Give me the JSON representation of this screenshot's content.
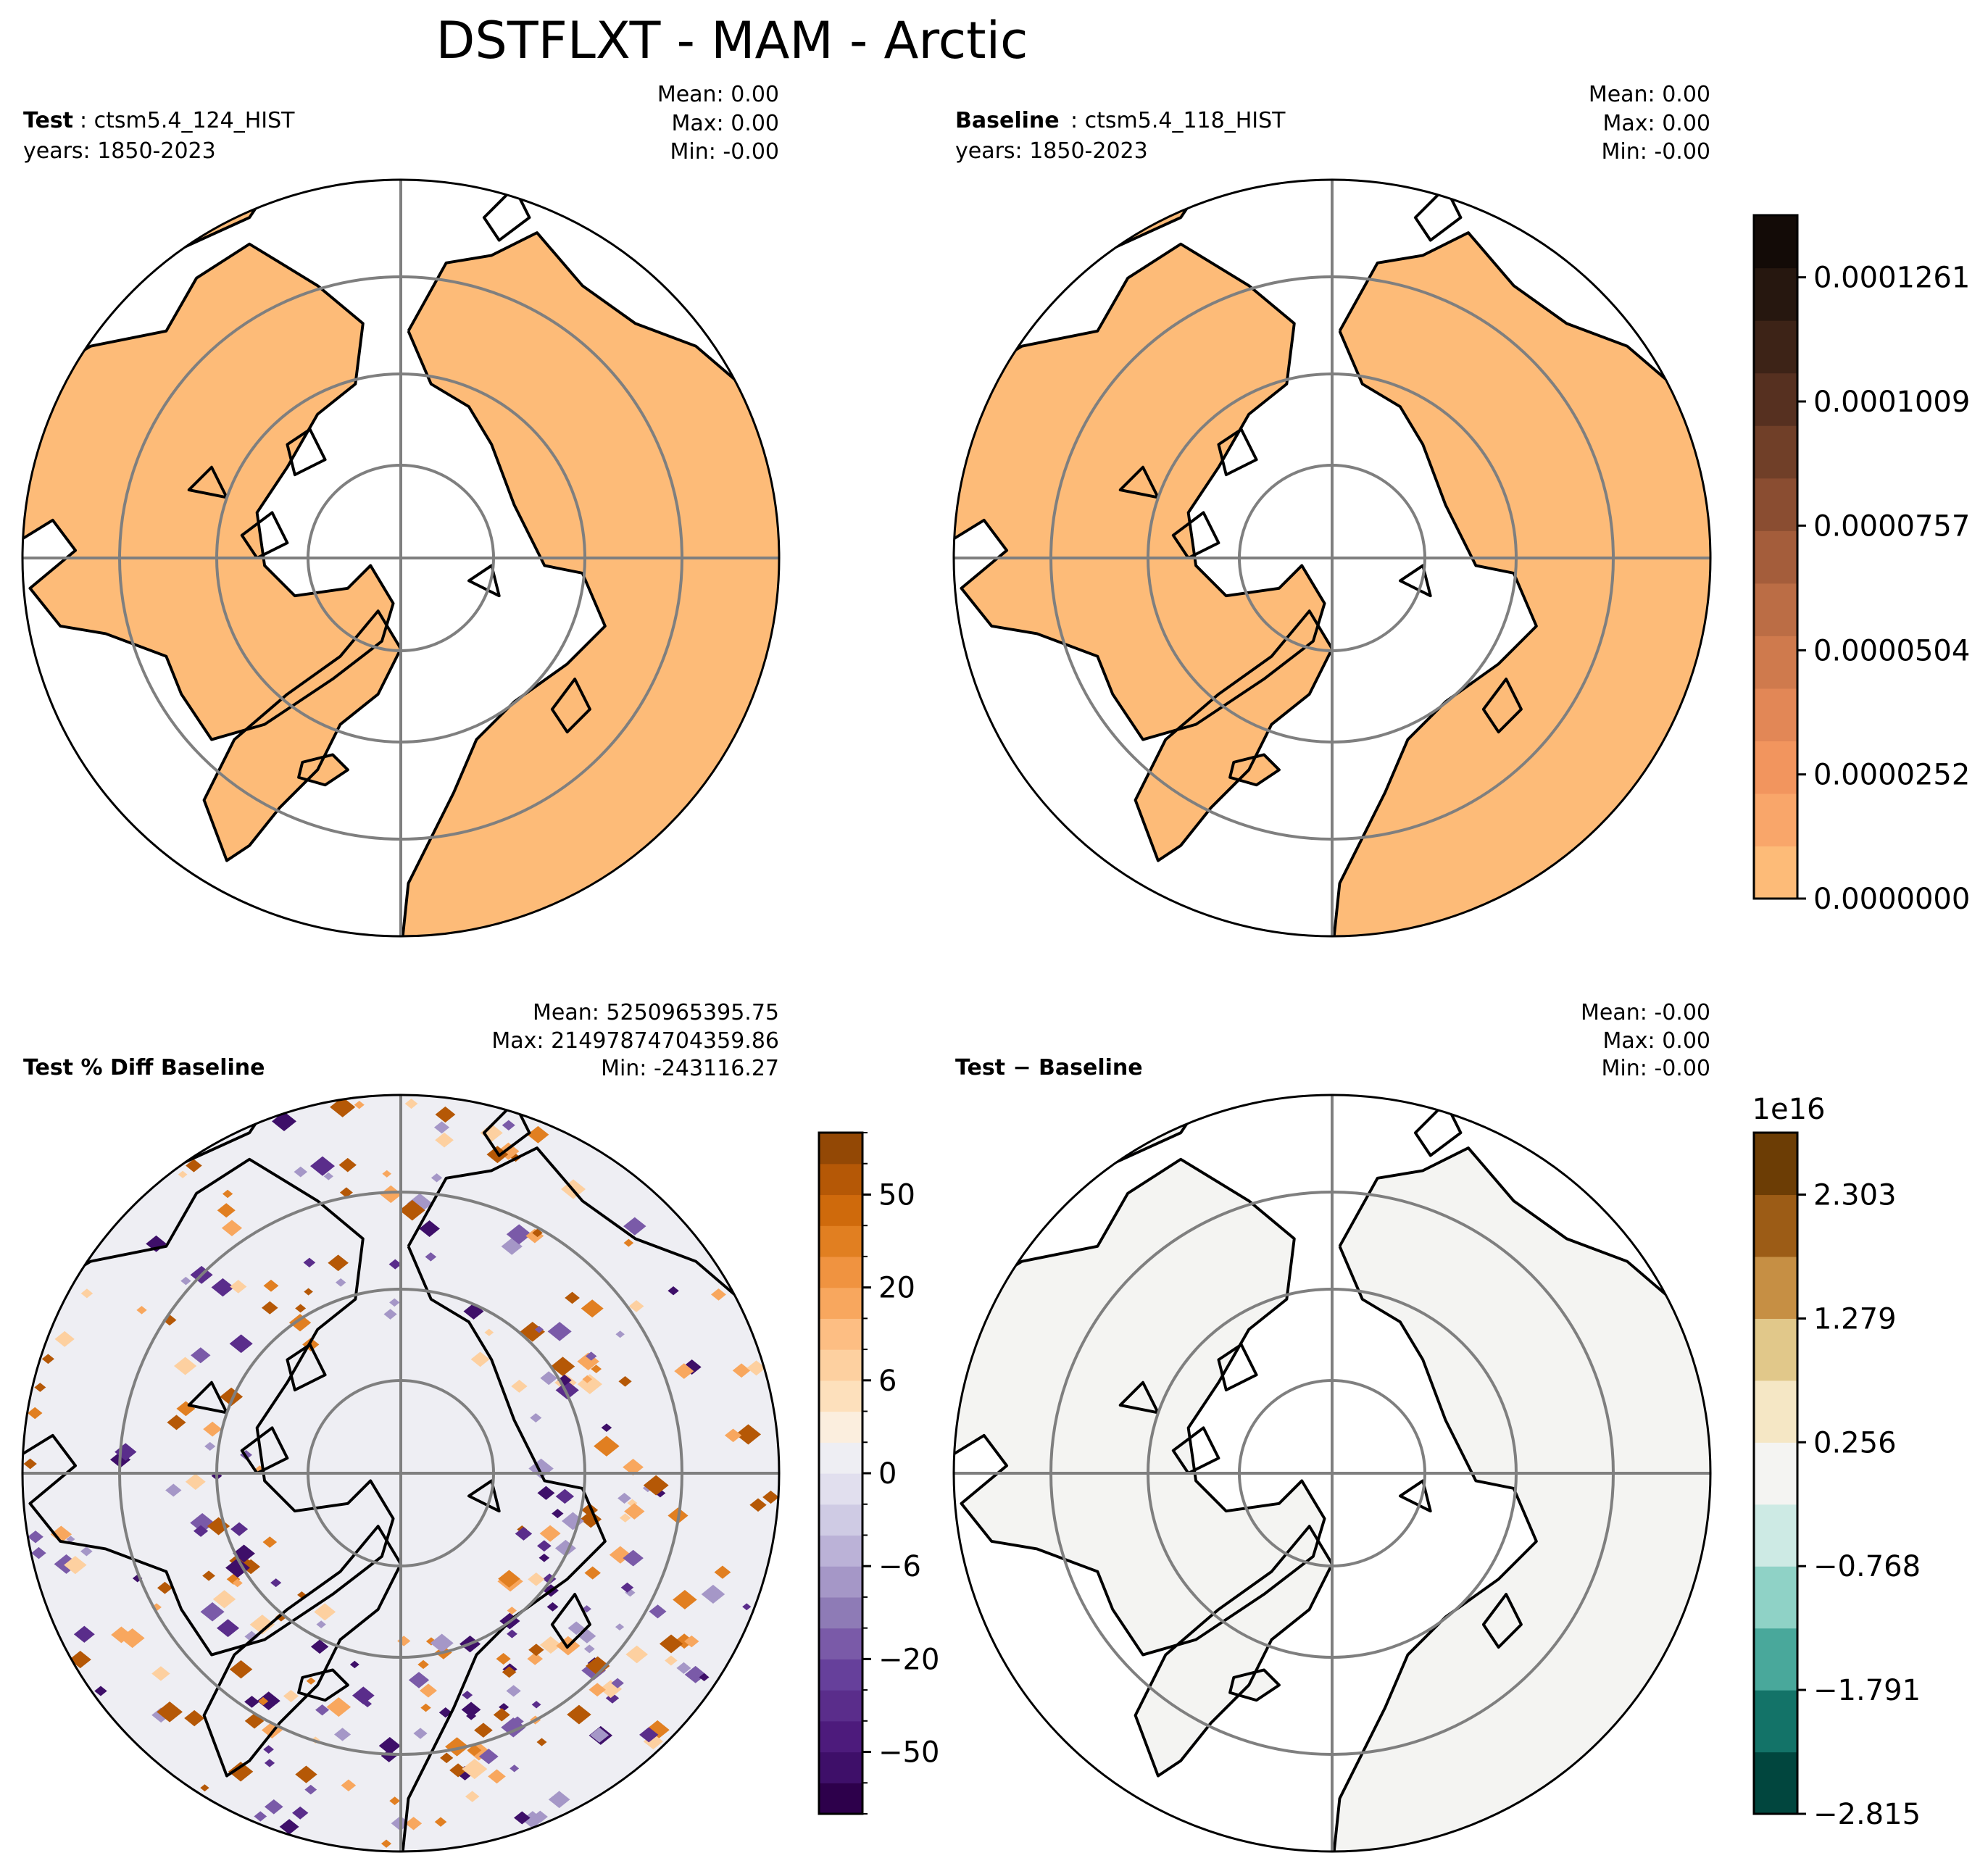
{
  "figure": {
    "title": "DSTFLXT - MAM - Arctic"
  },
  "colors": {
    "land_fill": "#fdbb78",
    "ocean_fill": "#ffffff",
    "diff_bg": "#eeeef3",
    "absdiff_fill": "#f4f4f2",
    "gridline": "#7f7f7f",
    "coast": "#000000"
  },
  "chart_data": [
    {
      "type": "heatmap",
      "panel": "test",
      "header_bold": "Test",
      "header_case": ": ctsm5.4_124_HIST",
      "years": "years: 1850-2023",
      "stats": {
        "mean": "Mean:  0.00",
        "max": "Max:  0.00",
        "min": "Min: -0.00"
      },
      "field": "uniform near-zero dust flux over land (MAM)"
    },
    {
      "type": "heatmap",
      "panel": "baseline",
      "header_bold": "Baseline",
      "header_case": ": ctsm5.4_118_HIST",
      "years": "years: 1850-2023",
      "stats": {
        "mean": "Mean:  0.00",
        "max": "Max:  0.00",
        "min": "Min: -0.00"
      },
      "colorbar": {
        "ticks": [
          "0.0000000",
          "0.0000252",
          "0.0000504",
          "0.0000757",
          "0.0001009",
          "0.0001261"
        ],
        "tick_values": [
          0,
          2.52e-05,
          5.04e-05,
          7.57e-05,
          0.0001009,
          0.0001261
        ],
        "range": [
          0,
          0.0001387
        ],
        "colors": [
          "#fdbb78",
          "#f9a66a",
          "#f2955e",
          "#e28756",
          "#cf7a4d",
          "#bb6d45",
          "#a45d3b",
          "#8a4d31",
          "#703f28",
          "#563020",
          "#3d2317",
          "#26170f",
          "#130b07"
        ]
      }
    },
    {
      "type": "heatmap",
      "panel": "pct_diff",
      "header_bold": "Test % Diff Baseline",
      "stats": {
        "mean": "Mean: 5250965395.75",
        "max": "Max: 21497874704359.86",
        "min": "Min: -243116.27"
      },
      "colorbar": {
        "ticks": [
          "−50",
          "−20",
          "−6",
          "0",
          "6",
          "20",
          "50"
        ],
        "tick_values": [
          -50,
          -20,
          -6,
          0,
          6,
          20,
          50
        ],
        "levels": [
          -100,
          -70,
          -50,
          -40,
          -30,
          -20,
          -15,
          -10,
          -6,
          -4,
          -2,
          0,
          2,
          4,
          6,
          10,
          15,
          20,
          30,
          40,
          50,
          70,
          100
        ],
        "colors": [
          "#2d004b",
          "#3e0f69",
          "#4d1b7c",
          "#5a2d8b",
          "#66409b",
          "#7a5aa8",
          "#8e7bb6",
          "#a597c7",
          "#bbb2d7",
          "#cfcbe4",
          "#e1dfee",
          "#eeeef3",
          "#fbeede",
          "#fde0bc",
          "#fdd0a0",
          "#fdbe83",
          "#f8a75e",
          "#f09340",
          "#e17f21",
          "#cf6a0c",
          "#b55806",
          "#934805"
        ],
        "blobs": [
          {
            "type": "neg",
            "ax": 0.08,
            "r": 0.22
          },
          {
            "type": "pos",
            "ax": 0.18,
            "r": 0.28
          },
          {
            "type": "pos",
            "ax": 0.32,
            "r": 0.25
          },
          {
            "type": "neg",
            "ax": 0.45,
            "r": 0.29
          },
          {
            "type": "pos",
            "ax": 0.55,
            "r": 0.21
          },
          {
            "type": "neg",
            "ax": 0.62,
            "r": 0.33
          },
          {
            "type": "neg",
            "ax": 0.74,
            "r": 0.3
          },
          {
            "type": "pos",
            "ax": 0.8,
            "r": 0.24
          },
          {
            "type": "neg",
            "ax": 0.88,
            "r": 0.27
          },
          {
            "type": "pos",
            "ax": 0.95,
            "r": 0.33
          },
          {
            "type": "neg",
            "ax": 1.05,
            "r": 0.3
          },
          {
            "type": "pos",
            "ax": 1.15,
            "r": 0.26
          },
          {
            "type": "neg",
            "ax": 1.25,
            "r": 0.31
          },
          {
            "type": "pos",
            "ax": 1.35,
            "r": 0.27
          },
          {
            "type": "neg",
            "ax": 1.45,
            "r": 0.34
          },
          {
            "type": "pos",
            "ax": 1.6,
            "r": 0.3
          },
          {
            "type": "neg",
            "ax": 1.75,
            "r": 0.32
          },
          {
            "type": "pos",
            "ax": 1.9,
            "r": 0.28
          },
          {
            "type": "neg",
            "ax": 2.05,
            "r": 0.33
          },
          {
            "type": "pos",
            "ax": 2.2,
            "r": 0.29
          },
          {
            "type": "neg",
            "ax": 2.35,
            "r": 0.31
          },
          {
            "type": "pos",
            "ax": 2.5,
            "r": 0.27
          },
          {
            "type": "pos",
            "ax": 2.7,
            "r": 0.3
          },
          {
            "type": "neg",
            "ax": 2.85,
            "r": 0.33
          },
          {
            "type": "pos",
            "ax": 3.0,
            "r": 0.25
          },
          {
            "type": "neg",
            "ax": 3.2,
            "r": 0.29
          },
          {
            "type": "pos",
            "ax": 3.4,
            "r": 0.32
          },
          {
            "type": "pos",
            "ax": 3.6,
            "r": 0.26
          },
          {
            "type": "neg",
            "ax": 3.8,
            "r": 0.31
          },
          {
            "type": "pos",
            "ax": 4.0,
            "r": 0.28
          },
          {
            "type": "pos",
            "ax": 4.2,
            "r": 0.33
          },
          {
            "type": "neg",
            "ax": 4.4,
            "r": 0.27
          },
          {
            "type": "pos",
            "ax": 4.55,
            "r": 0.3
          },
          {
            "type": "neg",
            "ax": 4.7,
            "r": 0.29
          },
          {
            "type": "pos",
            "ax": 4.85,
            "r": 0.26
          },
          {
            "type": "neg",
            "ax": 5.0,
            "r": 0.32
          },
          {
            "type": "pos",
            "ax": 5.15,
            "r": 0.3
          },
          {
            "type": "pos",
            "ax": 5.35,
            "r": 0.24
          },
          {
            "type": "neg",
            "ax": 5.55,
            "r": 0.28
          },
          {
            "type": "pos",
            "ax": 5.7,
            "r": 0.31
          },
          {
            "type": "neg",
            "ax": 5.9,
            "r": 0.26
          },
          {
            "type": "pos",
            "ax": 6.1,
            "r": 0.29
          },
          {
            "type": "neg",
            "ax": 0.4,
            "r": 0.24
          },
          {
            "type": "pos",
            "ax": 0.67,
            "r": 0.27
          },
          {
            "type": "neg",
            "ax": 1.1,
            "r": 0.26
          },
          {
            "type": "pos",
            "ax": 1.52,
            "r": 0.24
          },
          {
            "type": "neg",
            "ax": 1.98,
            "r": 0.28
          },
          {
            "type": "pos",
            "ax": 2.42,
            "r": 0.25
          },
          {
            "type": "neg",
            "ax": 2.78,
            "r": 0.24
          },
          {
            "type": "pos",
            "ax": 5.82,
            "r": 0.25
          }
        ]
      }
    },
    {
      "type": "heatmap",
      "panel": "abs_diff",
      "header_bold": "Test − Baseline",
      "stats": {
        "mean": "Mean: -0.00",
        "max": "Max:  0.00",
        "min": "Min: -0.00"
      },
      "colorbar": {
        "offset_label": "1e16",
        "ticks": [
          "−2.815",
          "−1.791",
          "−0.768",
          "0.256",
          "1.279",
          "2.303"
        ],
        "tick_values": [
          -2.815,
          -1.791,
          -0.768,
          0.256,
          1.279,
          2.303
        ],
        "range": [
          -2.815,
          2.815
        ],
        "colors": [
          "#01463e",
          "#137368",
          "#49a89b",
          "#8fd2c6",
          "#cdeae4",
          "#f4f4f2",
          "#f5e7c5",
          "#e1c88a",
          "#c68f44",
          "#9c5c16",
          "#6c3d05"
        ]
      }
    }
  ]
}
